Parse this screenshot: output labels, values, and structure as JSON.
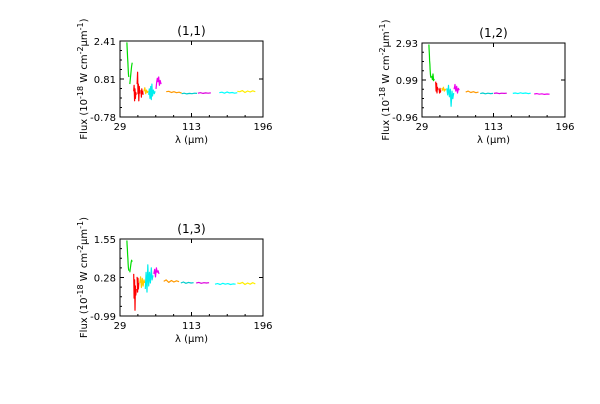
{
  "chart_data": [
    {
      "type": "line",
      "title": "(1,1)",
      "xlabel": "λ (μm)",
      "ylabel_base": "Flux (10",
      "ylabel_parts": [
        "-18",
        " W cm",
        "-2",
        "μm",
        "-1",
        ")"
      ],
      "xticks": [
        "29",
        "113",
        "196"
      ],
      "yticks": [
        "2.41",
        "0.81",
        "-0.78"
      ],
      "xlim": [
        29,
        196
      ],
      "ylim": [
        -0.78,
        2.41
      ],
      "grid": false,
      "series": [
        {
          "color": "#00dd00",
          "segments": [
            {
              "x": [
                37.0,
                37.3,
                37.6,
                37.9,
                38.2,
                38.5,
                38.8,
                39.1,
                39.4
              ],
              "y": [
                2.35,
                2.15,
                1.9,
                1.7,
                1.5,
                1.3,
                1.05,
                0.95,
                0.9
              ]
            },
            {
              "x": [
                40.5,
                41.2,
                41.9,
                42.6,
                43.3
              ],
              "y": [
                0.6,
                0.85,
                1.1,
                1.35,
                1.5
              ]
            }
          ]
        },
        {
          "color": "#ff0000",
          "segments": [
            {
              "x": [
                45.0,
                45.5,
                46.0,
                46.5,
                47.0,
                47.5,
                48.0
              ],
              "y": [
                0.3,
                0.55,
                -0.1,
                0.4,
                0.0,
                0.25,
                0.15
              ]
            },
            {
              "x": [
                49.0,
                49.5,
                50.0,
                50.5,
                51.0,
                51.5,
                52.0
              ],
              "y": [
                0.6,
                1.1,
                0.2,
                0.6,
                -0.1,
                0.5,
                0.2
              ]
            },
            {
              "x": [
                53.5,
                54.0,
                54.5,
                55.0,
                55.5,
                56.0
              ],
              "y": [
                0.35,
                0.05,
                0.4,
                0.2,
                0.3,
                0.15
              ]
            }
          ]
        },
        {
          "color": "#ffcc00",
          "segments": [
            {
              "x": [
                57.0,
                58.0,
                59.0,
                60.0,
                61.0,
                62.0
              ],
              "y": [
                0.3,
                0.45,
                0.2,
                0.35,
                0.25,
                0.3
              ]
            }
          ]
        },
        {
          "color": "#00eeee",
          "segments": [
            {
              "x": [
                62.5,
                63.2,
                64.0,
                64.8,
                65.5,
                66.3,
                67.0,
                68.0,
                69.0,
                70.0
              ],
              "y": [
                0.15,
                0.4,
                0.0,
                0.5,
                -0.05,
                0.6,
                0.1,
                0.35,
                0.2,
                0.3
              ]
            }
          ]
        },
        {
          "color": "#ee00ee",
          "segments": [
            {
              "x": [
                71.0,
                71.8,
                72.6,
                73.4,
                74.2,
                75.0,
                76.0,
                77.0
              ],
              "y": [
                0.4,
                0.65,
                0.85,
                0.7,
                0.9,
                0.55,
                0.75,
                0.6
              ]
            }
          ]
        },
        {
          "color": "#ff9900",
          "segments": [
            {
              "x": [
                83,
                86,
                89,
                92,
                95,
                98,
                101
              ],
              "y": [
                0.28,
                0.3,
                0.25,
                0.28,
                0.24,
                0.26,
                0.22
              ]
            }
          ]
        },
        {
          "color": "#00cccc",
          "segments": [
            {
              "x": [
                101,
                104,
                107,
                110,
                113,
                116,
                119
              ],
              "y": [
                0.2,
                0.22,
                0.19,
                0.21,
                0.2,
                0.22,
                0.21
              ]
            }
          ]
        },
        {
          "color": "#dd00dd",
          "segments": [
            {
              "x": [
                120,
                123,
                126,
                129,
                132,
                135
              ],
              "y": [
                0.22,
                0.24,
                0.21,
                0.23,
                0.22,
                0.23
              ]
            }
          ]
        },
        {
          "color": "#00ffff",
          "segments": [
            {
              "x": [
                145,
                148,
                151,
                154,
                157,
                160,
                163,
                166
              ],
              "y": [
                0.24,
                0.26,
                0.22,
                0.27,
                0.23,
                0.25,
                0.22,
                0.24
              ]
            }
          ]
        },
        {
          "color": "#ffee00",
          "segments": [
            {
              "x": [
                166,
                169,
                172,
                175,
                178,
                181,
                184,
                187
              ],
              "y": [
                0.3,
                0.28,
                0.33,
                0.25,
                0.31,
                0.27,
                0.32,
                0.28
              ]
            }
          ]
        }
      ]
    },
    {
      "type": "line",
      "title": "(1,2)",
      "xlabel": "λ (μm)",
      "ylabel_base": "Flux (10",
      "ylabel_parts": [
        "-18",
        " W cm",
        "-2",
        "μm",
        "-1",
        ")"
      ],
      "xticks": [
        "29",
        "113",
        "196"
      ],
      "yticks": [
        "2.93",
        "0.99",
        "-0.96"
      ],
      "xlim": [
        29,
        196
      ],
      "ylim": [
        -0.96,
        2.93
      ],
      "grid": false,
      "series": [
        {
          "color": "#00dd00",
          "segments": [
            {
              "x": [
                37.0,
                37.3,
                37.6,
                37.9,
                38.2,
                38.5,
                38.8,
                39.1,
                39.4
              ],
              "y": [
                2.85,
                2.6,
                2.3,
                2.0,
                1.8,
                1.55,
                1.3,
                1.2,
                1.1
              ]
            },
            {
              "x": [
                40.5,
                41.2,
                41.9,
                42.6,
                43.3
              ],
              "y": [
                1.2,
                1.0,
                1.3,
                0.95,
                1.05
              ]
            }
          ]
        },
        {
          "color": "#ff0000",
          "segments": [
            {
              "x": [
                45.0,
                45.5,
                46.0,
                46.5,
                47.0,
                47.5,
                48.0
              ],
              "y": [
                0.9,
                0.4,
                0.8,
                0.3,
                0.6,
                0.5,
                0.55
              ]
            },
            {
              "x": [
                49.0,
                49.5,
                50.0,
                50.5,
                51.0
              ],
              "y": [
                0.5,
                0.3,
                0.55,
                0.35,
                0.45
              ]
            }
          ]
        },
        {
          "color": "#ffcc00",
          "segments": [
            {
              "x": [
                52.0,
                53.0,
                54.0,
                55.0,
                56.0,
                57.0
              ],
              "y": [
                0.55,
                0.45,
                0.6,
                0.4,
                0.5,
                0.45
              ]
            }
          ]
        },
        {
          "color": "#00eeee",
          "segments": [
            {
              "x": [
                58.0,
                59.0,
                60.0,
                61.0,
                62.0,
                63.0,
                64.0,
                65.0,
                66.0
              ],
              "y": [
                0.55,
                0.2,
                0.7,
                0.1,
                0.5,
                -0.4,
                0.4,
                0.0,
                0.3
              ]
            }
          ]
        },
        {
          "color": "#ee00ee",
          "segments": [
            {
              "x": [
                66.5,
                67.5,
                68.5,
                69.5,
                70.5,
                71.5,
                72.5
              ],
              "y": [
                0.5,
                0.75,
                0.4,
                0.65,
                0.3,
                0.55,
                0.45
              ]
            }
          ]
        },
        {
          "color": "#ff9900",
          "segments": [
            {
              "x": [
                80,
                83,
                86,
                89,
                92,
                95
              ],
              "y": [
                0.35,
                0.4,
                0.33,
                0.37,
                0.32,
                0.35
              ]
            }
          ]
        },
        {
          "color": "#00cccc",
          "segments": [
            {
              "x": [
                97,
                100,
                103,
                106,
                109,
                112
              ],
              "y": [
                0.27,
                0.3,
                0.26,
                0.29,
                0.27,
                0.28
              ]
            }
          ]
        },
        {
          "color": "#dd00dd",
          "segments": [
            {
              "x": [
                113,
                116,
                119,
                122,
                125,
                128
              ],
              "y": [
                0.28,
                0.3,
                0.27,
                0.29,
                0.28,
                0.29
              ]
            }
          ]
        },
        {
          "color": "#00ffff",
          "segments": [
            {
              "x": [
                135,
                138,
                141,
                144,
                147,
                150,
                153,
                156
              ],
              "y": [
                0.28,
                0.3,
                0.27,
                0.31,
                0.28,
                0.3,
                0.27,
                0.29
              ]
            }
          ]
        },
        {
          "color": "#ee00ee",
          "segments": [
            {
              "x": [
                160,
                163,
                166,
                169,
                172,
                175,
                178
              ],
              "y": [
                0.25,
                0.27,
                0.24,
                0.26,
                0.23,
                0.25,
                0.24
              ]
            }
          ]
        }
      ]
    },
    {
      "type": "line",
      "title": "(1,3)",
      "xlabel": "λ (μm)",
      "ylabel_base": "Flux (10",
      "ylabel_parts": [
        "-18",
        " W cm",
        "-2",
        "μm",
        "-1",
        ")"
      ],
      "xticks": [
        "29",
        "113",
        "196"
      ],
      "yticks": [
        "1.55",
        "0.28",
        "-0.99"
      ],
      "xlim": [
        29,
        196
      ],
      "ylim": [
        -0.99,
        1.55
      ],
      "grid": false,
      "series": [
        {
          "color": "#00dd00",
          "segments": [
            {
              "x": [
                37.0,
                37.3,
                37.6,
                37.9,
                38.2,
                38.5,
                38.8,
                39.1,
                39.4
              ],
              "y": [
                1.5,
                1.35,
                1.2,
                1.05,
                0.9,
                0.75,
                0.6,
                0.55,
                0.5
              ]
            },
            {
              "x": [
                40.5,
                41.2,
                41.9,
                42.6,
                43.3
              ],
              "y": [
                0.45,
                0.6,
                0.75,
                0.85,
                0.8
              ]
            }
          ]
        },
        {
          "color": "#ff0000",
          "segments": [
            {
              "x": [
                45.0,
                45.5,
                46.0,
                46.5,
                47.0,
                47.5,
                48.0
              ],
              "y": [
                0.4,
                -0.4,
                0.2,
                -0.8,
                0.0,
                -0.3,
                -0.1
              ]
            },
            {
              "x": [
                49.0,
                49.5,
                50.0,
                50.5,
                51.0
              ],
              "y": [
                0.3,
                -0.2,
                0.25,
                -0.1,
                0.1
              ]
            }
          ]
        },
        {
          "color": "#ffcc00",
          "segments": [
            {
              "x": [
                52.0,
                53.0,
                54.0,
                55.0,
                56.0,
                57.0,
                58.0
              ],
              "y": [
                0.1,
                0.3,
                -0.05,
                0.25,
                0.0,
                0.2,
                0.1
              ]
            }
          ]
        },
        {
          "color": "#00eeee",
          "segments": [
            {
              "x": [
                58.5,
                59.5,
                60.5,
                61.5,
                62.5,
                63.5,
                64.5,
                65.5,
                66.5,
                67.5
              ],
              "y": [
                -0.1,
                0.45,
                -0.2,
                0.7,
                0.0,
                0.45,
                0.1,
                0.6,
                0.2,
                0.35
              ]
            }
          ]
        },
        {
          "color": "#ee00ee",
          "segments": [
            {
              "x": [
                68.5,
                69.5,
                70.5,
                71.5,
                72.5,
                73.5,
                74.5
              ],
              "y": [
                0.4,
                0.55,
                0.3,
                0.6,
                0.45,
                0.5,
                0.4
              ]
            }
          ]
        },
        {
          "color": "#ff9900",
          "segments": [
            {
              "x": [
                80,
                83,
                86,
                89,
                92,
                95,
                98
              ],
              "y": [
                0.15,
                0.2,
                0.12,
                0.18,
                0.13,
                0.17,
                0.14
              ]
            }
          ]
        },
        {
          "color": "#00cccc",
          "segments": [
            {
              "x": [
                100,
                103,
                106,
                109,
                112,
                115
              ],
              "y": [
                0.1,
                0.13,
                0.09,
                0.12,
                0.1,
                0.11
              ]
            }
          ]
        },
        {
          "color": "#dd00dd",
          "segments": [
            {
              "x": [
                118,
                121,
                124,
                127,
                130,
                133
              ],
              "y": [
                0.1,
                0.12,
                0.09,
                0.11,
                0.1,
                0.11
              ]
            }
          ]
        },
        {
          "color": "#00ffff",
          "segments": [
            {
              "x": [
                140,
                143,
                146,
                149,
                152,
                155,
                158,
                161,
                164
              ],
              "y": [
                0.06,
                0.08,
                0.05,
                0.09,
                0.06,
                0.08,
                0.05,
                0.07,
                0.06
              ]
            }
          ]
        },
        {
          "color": "#ffee00",
          "segments": [
            {
              "x": [
                166,
                169,
                172,
                175,
                178,
                181,
                184,
                187
              ],
              "y": [
                0.1,
                0.08,
                0.12,
                0.05,
                0.1,
                0.06,
                0.11,
                0.07
              ]
            }
          ]
        }
      ]
    }
  ]
}
